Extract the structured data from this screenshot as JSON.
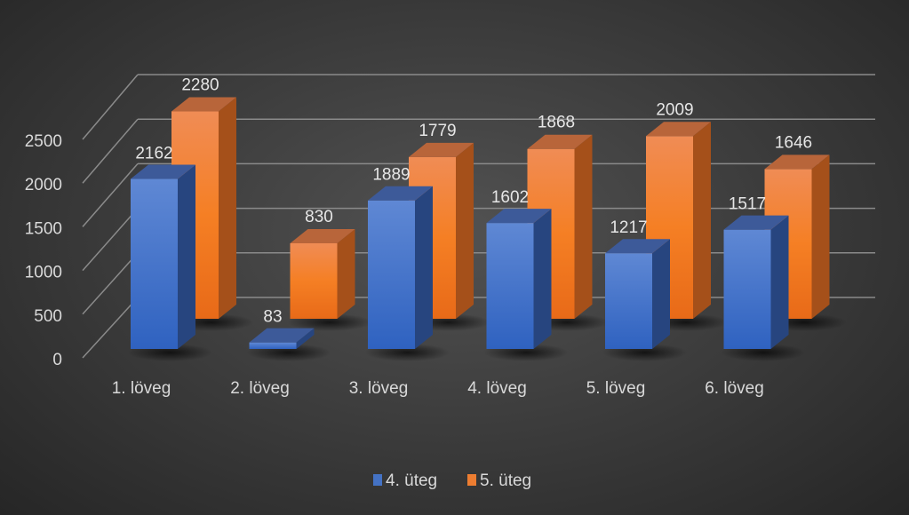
{
  "chart_data": {
    "type": "bar",
    "subtype": "3d-clustered-column",
    "title": "",
    "xlabel": "",
    "ylabel": "",
    "categories": [
      "1. löveg",
      "2. löveg",
      "3. löveg",
      "4. löveg",
      "5. löveg",
      "6. löveg"
    ],
    "series": [
      {
        "name": "4. üteg",
        "color": "#4472C4",
        "values": [
          2162,
          83,
          1889,
          1602,
          1217,
          1517
        ]
      },
      {
        "name": "5. üteg",
        "color": "#ED7D31",
        "values": [
          2280,
          830,
          1779,
          1868,
          2009,
          1646
        ]
      }
    ],
    "yticks": [
      0,
      500,
      1000,
      1500,
      2000,
      2500
    ],
    "ylim": [
      0,
      2500
    ],
    "grid": true,
    "legend_position": "bottom",
    "data_labels": true
  }
}
